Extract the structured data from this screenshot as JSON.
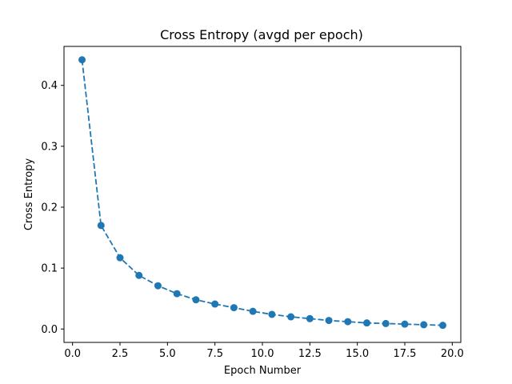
{
  "chart_data": {
    "type": "line",
    "title": "Cross Entropy (avgd per epoch)",
    "xlabel": "Epoch Number",
    "ylabel": "Cross Entropy",
    "xlim": [
      -0.45,
      20.45
    ],
    "ylim": [
      -0.022,
      0.464
    ],
    "xticks": [
      0.0,
      2.5,
      5.0,
      7.5,
      10.0,
      12.5,
      15.0,
      17.5,
      20.0
    ],
    "xtick_labels": [
      "0.0",
      "2.5",
      "5.0",
      "7.5",
      "10.0",
      "12.5",
      "15.0",
      "17.5",
      "20.0"
    ],
    "yticks": [
      0.0,
      0.1,
      0.2,
      0.3,
      0.4
    ],
    "ytick_labels": [
      "0.0",
      "0.1",
      "0.2",
      "0.3",
      "0.4"
    ],
    "grid": false,
    "line_style": "dashed",
    "marker": "circle",
    "color": "#1f77b4",
    "series": [
      {
        "x": [
          0.5,
          1.5,
          2.5,
          3.5,
          4.5,
          5.5,
          6.5,
          7.5,
          8.5,
          9.5,
          10.5,
          11.5,
          12.5,
          13.5,
          14.5,
          15.5,
          16.5,
          17.5,
          18.5,
          19.5
        ],
        "values": [
          0.442,
          0.17,
          0.117,
          0.088,
          0.071,
          0.058,
          0.048,
          0.041,
          0.035,
          0.029,
          0.024,
          0.02,
          0.017,
          0.014,
          0.012,
          0.01,
          0.009,
          0.008,
          0.007,
          0.006
        ]
      }
    ]
  }
}
